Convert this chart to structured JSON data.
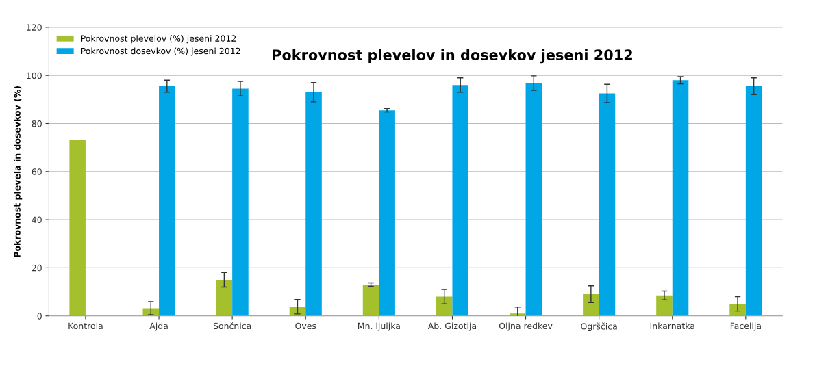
{
  "chart_data": {
    "type": "bar",
    "title": "Pokrovnost plevelov in dosevkov jeseni 2012",
    "ylabel": "Pokrovnost plevela in dosevkov (%)",
    "categories": [
      "Kontrola",
      "Ajda",
      "Sončnica",
      "Oves",
      "Mn. ljuljka",
      "Ab. Gizotija",
      "Oljna redkev",
      "Ogrščica",
      "Inkarnatka",
      "Facelija"
    ],
    "series": [
      {
        "name": "Pokrovnost plevelov (%) jeseni 2012",
        "color": "#a4c12d",
        "values": [
          73,
          3.2,
          15,
          3.8,
          13,
          8,
          1,
          9,
          8.5,
          5
        ],
        "errors": [
          null,
          2.7,
          3,
          3,
          0.7,
          3,
          2.7,
          3.5,
          1.8,
          3
        ]
      },
      {
        "name": "Pokrovnost dosevkov (%) jeseni 2012",
        "color": "#00a6e6",
        "values": [
          null,
          95.5,
          94.5,
          93,
          85.5,
          96,
          96.8,
          92.5,
          98,
          95.5
        ],
        "errors": [
          null,
          2.5,
          3,
          4,
          0.7,
          3,
          3,
          3.8,
          1.5,
          3.5
        ]
      }
    ],
    "ylim": [
      0,
      120
    ],
    "yticks": [
      0,
      20,
      40,
      60,
      80,
      100,
      120
    ],
    "grid": "y",
    "legend": "top left"
  }
}
